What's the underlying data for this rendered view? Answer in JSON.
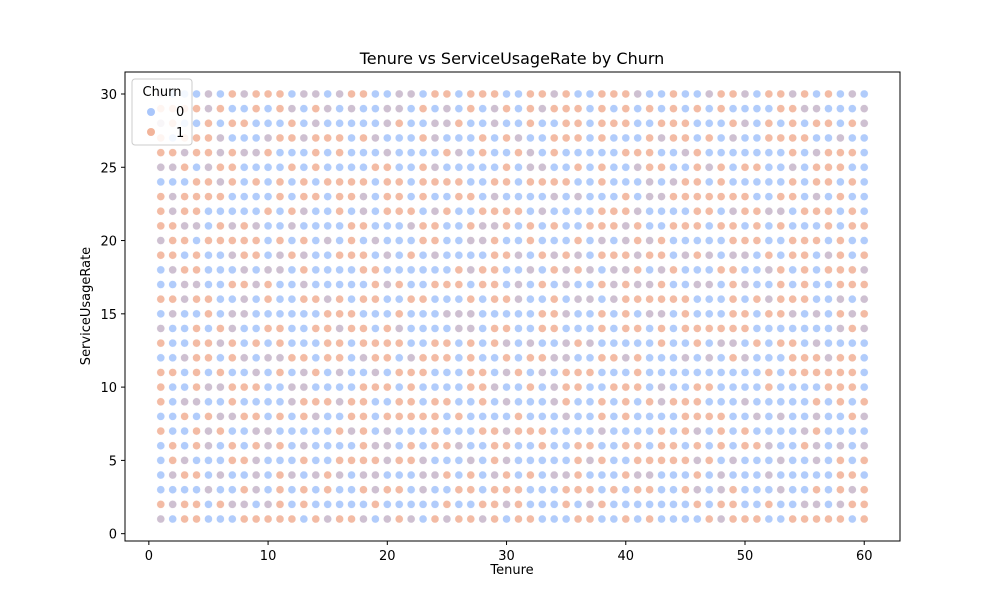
{
  "chart_data": {
    "type": "scatter",
    "title": "Tenure vs ServiceUsageRate by Churn",
    "xlabel": "Tenure",
    "ylabel": "ServiceUsageRate",
    "xlim": [
      -2,
      63
    ],
    "ylim": [
      -0.5,
      31.5
    ],
    "xticks": [
      0,
      10,
      20,
      30,
      40,
      50,
      60
    ],
    "yticks": [
      0,
      5,
      10,
      15,
      20,
      25,
      30
    ],
    "grid": false,
    "legend": {
      "title": "Churn",
      "placement": "top-left",
      "entries": [
        {
          "label": "0",
          "color": "#a9c6fb"
        },
        {
          "label": "1",
          "color": "#f2b49a"
        }
      ]
    },
    "x_range": [
      1,
      60
    ],
    "y_range": [
      1,
      30
    ],
    "series": [
      {
        "name": "0",
        "color": "#a9c6fb"
      },
      {
        "name": "1",
        "color": "#f2b49a"
      }
    ],
    "overlap_color": "#c9b9cc",
    "note": "Dense grid of points at every integer Tenure (1-60) and ServiceUsageRate (1-30); both churn classes appear throughout."
  }
}
